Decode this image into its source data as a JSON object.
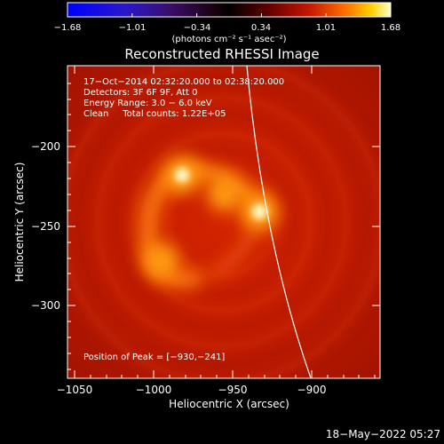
{
  "colorbar": {
    "ticks": [
      "−1.68",
      "−1.01",
      "−0.34",
      "0.34",
      "1.01",
      "1.68"
    ],
    "units": "(photons cm⁻² s⁻¹ asec⁻²)"
  },
  "title": "Reconstructed RHESSI Image",
  "info": {
    "line1": "17−Oct−2014 02:32:20.000 to 02:38:20.000",
    "line2": "Detectors: 3F 6F 9F, Att 0",
    "line3": "Energy Range: 3.0 − 6.0 keV",
    "line4": "Clean     Total counts: 1.22E+05"
  },
  "peak_label": "Position of Peak = [−930,−241]",
  "axes": {
    "xlabel": "Heliocentric X (arcsec)",
    "ylabel": "Heliocentric Y (arcsec)",
    "xticks": [
      "−1050",
      "−1000",
      "−950",
      "−900"
    ],
    "yticks": [
      "−200",
      "−250",
      "−300"
    ]
  },
  "timestamp": "18−May−2022 05:27",
  "colors": {
    "background": "#000000",
    "image_base": "#cc2200",
    "limb": "#ffffff"
  },
  "image_sources": [
    {
      "x": -982,
      "y": -218,
      "level": 0.95
    },
    {
      "x": -933,
      "y": -241,
      "level": 1.0
    },
    {
      "x": -995,
      "y": -272,
      "level": 0.75
    },
    {
      "x": -955,
      "y": -230,
      "level": 0.7
    }
  ]
}
